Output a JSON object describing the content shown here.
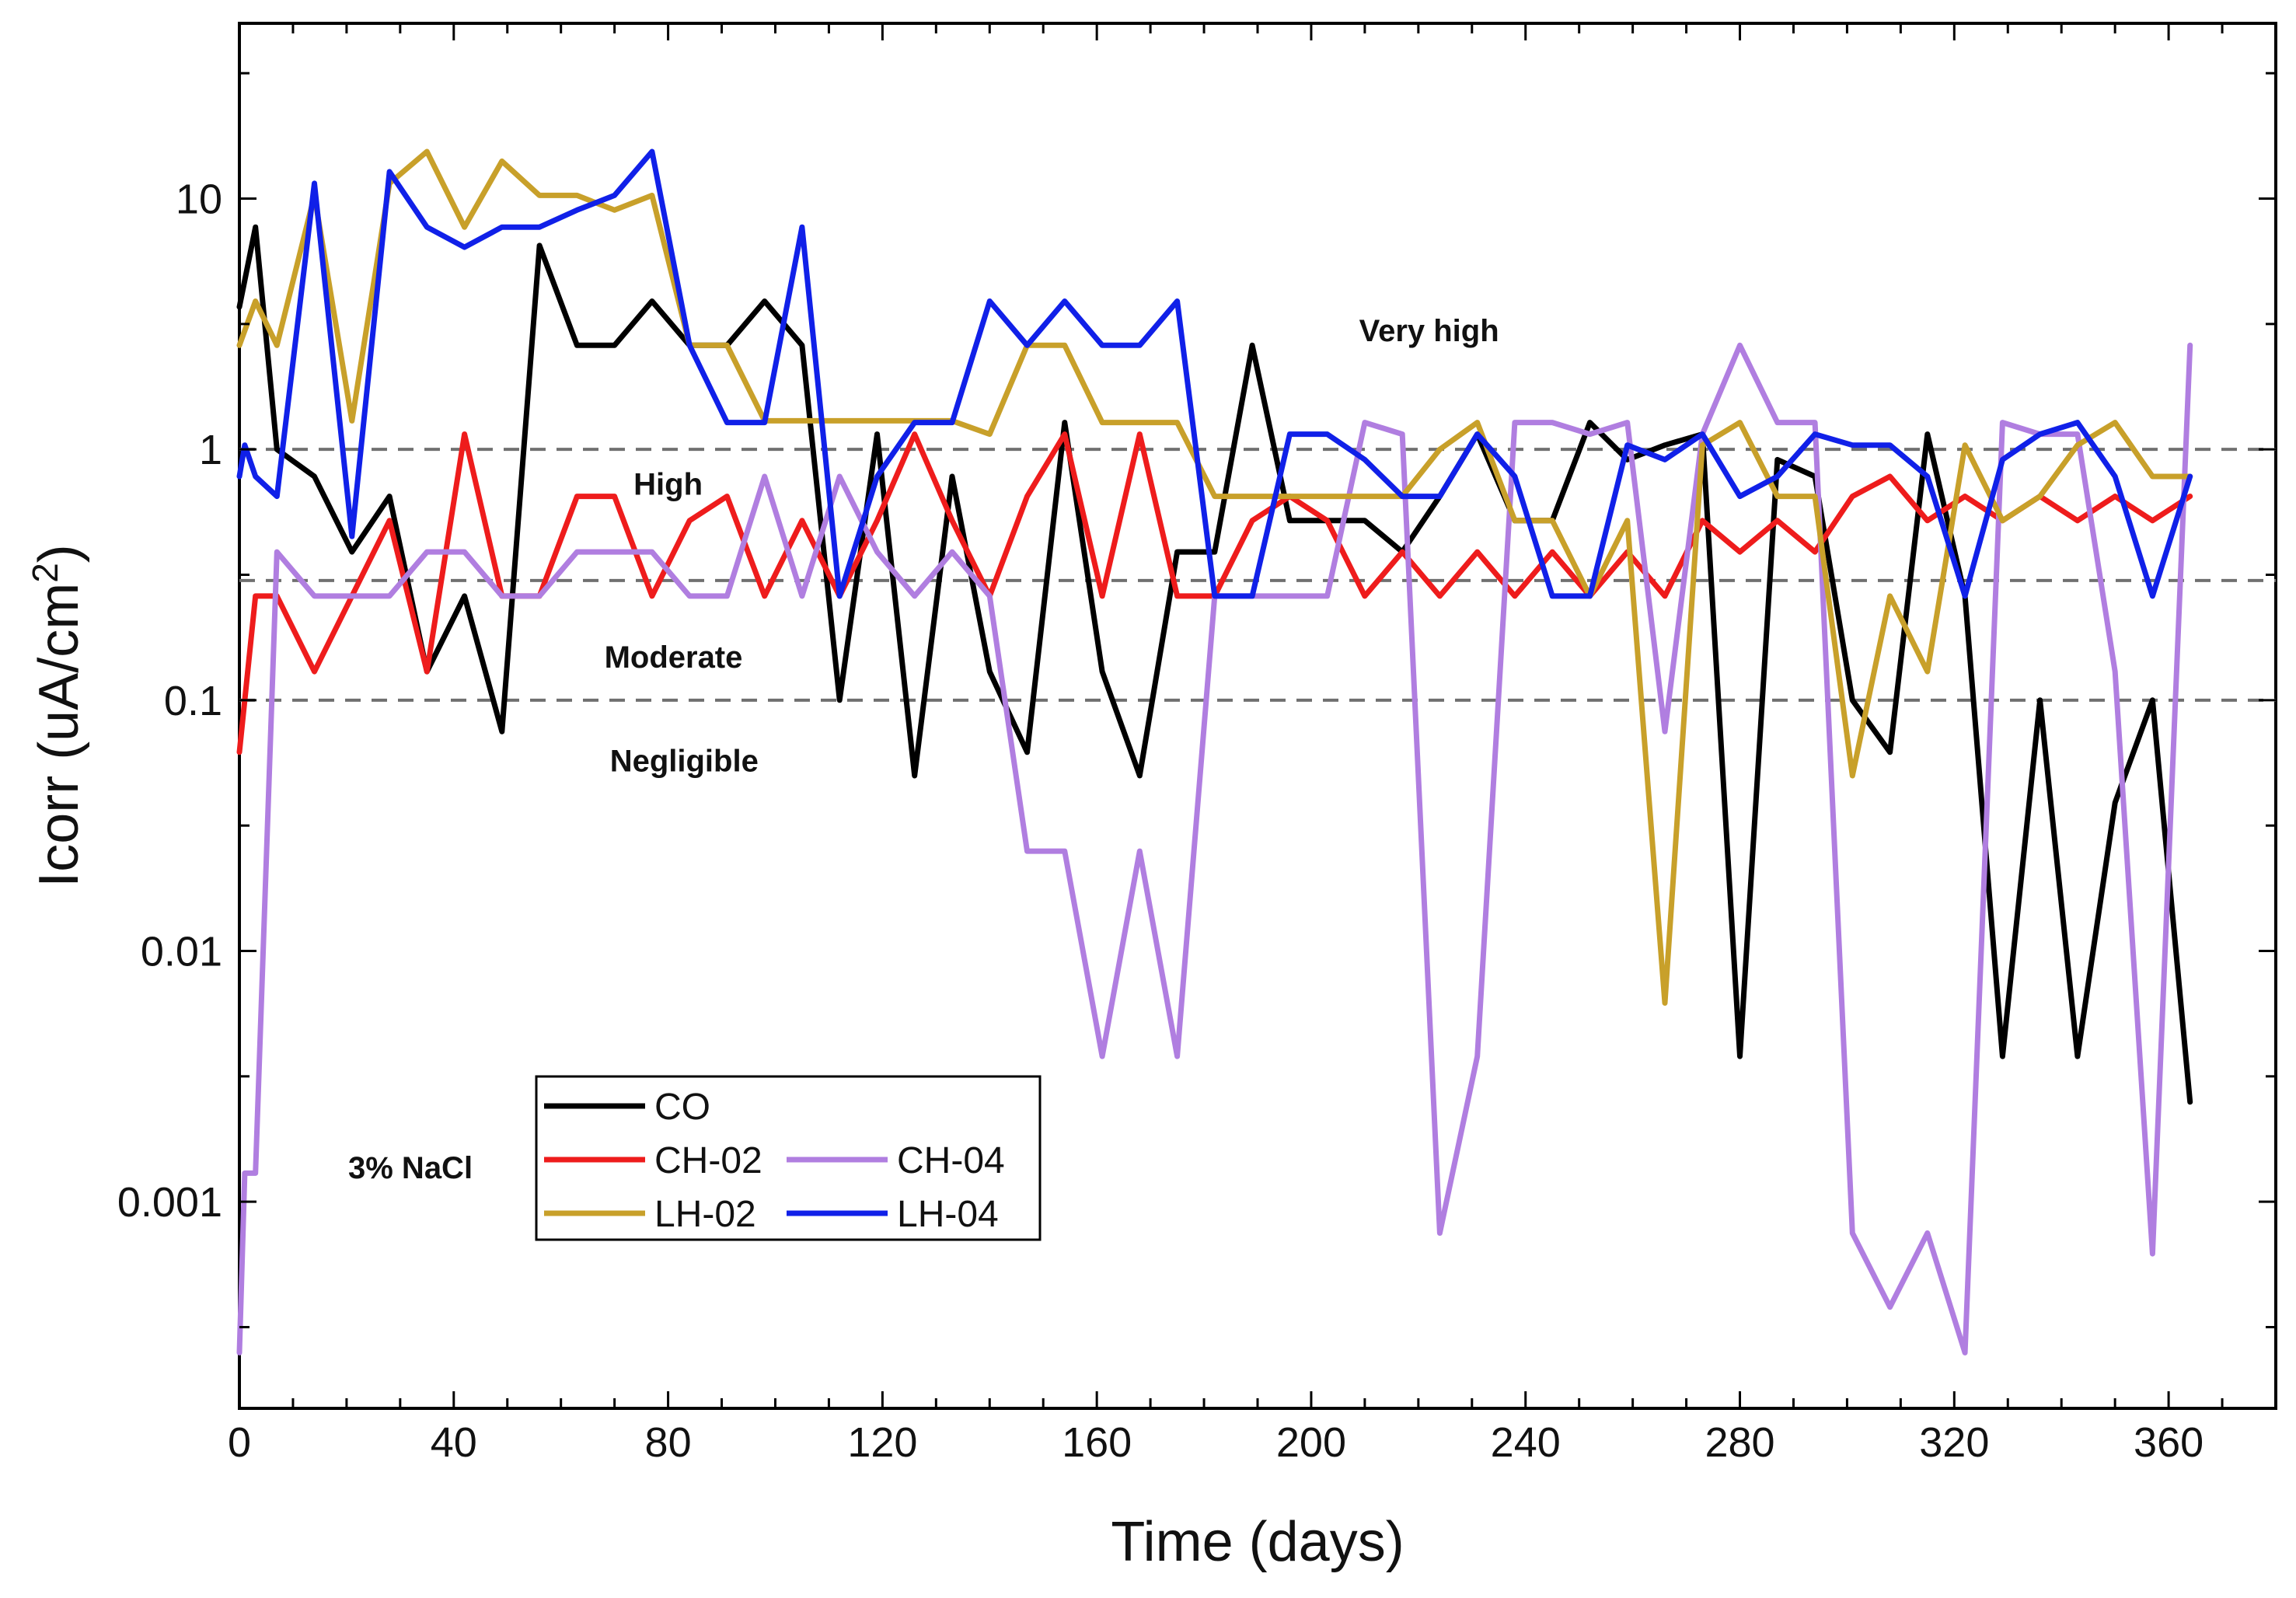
{
  "chart_data": {
    "type": "line",
    "xlabel": "Time (days)",
    "ylabel_main": "Icorr (uA/cm",
    "ylabel_sup": "2",
    "ylabel_end": ")",
    "xlim": [
      0,
      380
    ],
    "ylim": [
      0.00015,
      50
    ],
    "y_scale": "log",
    "grid": false,
    "x_ticks": [
      0,
      40,
      80,
      120,
      160,
      200,
      240,
      280,
      320,
      360
    ],
    "x_tick_labels": [
      "0",
      "40",
      "80",
      "120",
      "160",
      "200",
      "240",
      "280",
      "320",
      "360"
    ],
    "y_ticks": [
      0.001,
      0.01,
      0.1,
      1,
      10
    ],
    "y_tick_labels": [
      "0.001",
      "0.01",
      "0.1",
      "1",
      "10"
    ],
    "thresholds": [
      1,
      0.3,
      0.1
    ],
    "zones": [
      {
        "label": "Very high",
        "x": 222,
        "y": 2.7
      },
      {
        "label": "High",
        "x": 80,
        "y": 0.66
      },
      {
        "label": "Moderate",
        "x": 81,
        "y": 0.135
      },
      {
        "label": "Negligible",
        "x": 83,
        "y": 0.052
      }
    ],
    "annotation": "3%  NaCl",
    "legend_position": "bottom-left",
    "series": [
      {
        "name": "CO",
        "color": "#000000",
        "x": [
          0,
          3,
          7,
          14,
          21,
          28,
          35,
          42,
          49,
          56,
          63,
          70,
          77,
          84,
          91,
          98,
          105,
          112,
          119,
          126,
          133,
          140,
          147,
          154,
          161,
          168,
          175,
          182,
          189,
          196,
          203,
          210,
          217,
          224,
          231,
          238,
          245,
          252,
          259,
          266,
          273,
          280,
          287,
          294,
          301,
          308,
          315,
          322,
          329,
          336,
          343,
          350,
          357,
          364
        ],
        "y": [
          3.7,
          7.7,
          1.0,
          0.78,
          0.39,
          0.65,
          0.13,
          0.26,
          0.075,
          6.5,
          2.6,
          2.6,
          3.9,
          2.6,
          2.6,
          3.9,
          2.6,
          0.1,
          1.15,
          0.05,
          0.78,
          0.13,
          0.062,
          1.28,
          0.13,
          0.05,
          0.39,
          0.39,
          2.6,
          0.52,
          0.52,
          0.52,
          0.39,
          0.65,
          1.15,
          0.52,
          0.52,
          1.28,
          0.91,
          1.04,
          1.15,
          0.0038,
          0.91,
          0.78,
          0.1,
          0.062,
          1.15,
          0.26,
          0.0038,
          0.1,
          0.0038,
          0.039,
          0.1,
          0.0025
        ]
      },
      {
        "name": "CH-02",
        "color": "#ee1c1c",
        "x": [
          0,
          3,
          7,
          14,
          21,
          28,
          35,
          42,
          49,
          56,
          63,
          70,
          77,
          84,
          91,
          98,
          105,
          112,
          119,
          126,
          133,
          140,
          147,
          154,
          161,
          168,
          175,
          182,
          189,
          196,
          203,
          210,
          217,
          224,
          231,
          238,
          245,
          252,
          259,
          266,
          273,
          280,
          287,
          294,
          301,
          308,
          315,
          322,
          329,
          336,
          343,
          350,
          357,
          364
        ],
        "y": [
          0.062,
          0.26,
          0.26,
          0.13,
          0.26,
          0.52,
          0.13,
          1.15,
          0.26,
          0.26,
          0.65,
          0.65,
          0.26,
          0.52,
          0.65,
          0.26,
          0.52,
          0.26,
          0.52,
          1.15,
          0.52,
          0.26,
          0.65,
          1.15,
          0.26,
          1.15,
          0.26,
          0.26,
          0.52,
          0.65,
          0.52,
          0.26,
          0.39,
          0.26,
          0.39,
          0.26,
          0.39,
          0.26,
          0.39,
          0.26,
          0.52,
          0.39,
          0.52,
          0.39,
          0.65,
          0.78,
          0.52,
          0.65,
          0.52,
          0.65,
          0.52,
          0.65,
          0.52,
          0.65
        ]
      },
      {
        "name": "CH-04",
        "color": "#b07ee0",
        "x": [
          0,
          1,
          2,
          3,
          7,
          14,
          21,
          28,
          35,
          42,
          49,
          56,
          63,
          70,
          77,
          84,
          91,
          98,
          105,
          112,
          119,
          126,
          133,
          140,
          147,
          154,
          161,
          168,
          175,
          182,
          189,
          196,
          203,
          210,
          217,
          224,
          231,
          238,
          245,
          252,
          259,
          266,
          273,
          280,
          287,
          294,
          301,
          308,
          315,
          322,
          329,
          336,
          343,
          350,
          357,
          364
        ],
        "y": [
          0.00025,
          0.0013,
          0.0013,
          0.0013,
          0.39,
          0.26,
          0.26,
          0.26,
          0.39,
          0.39,
          0.26,
          0.26,
          0.39,
          0.39,
          0.39,
          0.26,
          0.26,
          0.78,
          0.26,
          0.78,
          0.39,
          0.26,
          0.39,
          0.26,
          0.025,
          0.025,
          0.0038,
          0.025,
          0.0038,
          0.26,
          0.26,
          0.26,
          0.26,
          1.28,
          1.15,
          0.00075,
          0.0038,
          1.28,
          1.28,
          1.15,
          1.28,
          0.075,
          1.15,
          2.6,
          1.28,
          1.28,
          0.00075,
          0.00038,
          0.00075,
          0.00025,
          1.28,
          1.15,
          1.15,
          0.13,
          0.00062,
          2.6
        ]
      },
      {
        "name": "LH-02",
        "color": "#c8a02a",
        "x": [
          0,
          3,
          7,
          14,
          21,
          28,
          35,
          42,
          49,
          56,
          63,
          70,
          77,
          84,
          91,
          98,
          105,
          112,
          119,
          126,
          133,
          140,
          147,
          154,
          161,
          168,
          175,
          182,
          189,
          196,
          203,
          210,
          217,
          224,
          231,
          238,
          245,
          252,
          259,
          266,
          273,
          280,
          287,
          294,
          301,
          308,
          315,
          322,
          329,
          336,
          343,
          350,
          357,
          364
        ],
        "y": [
          2.6,
          3.9,
          2.6,
          10.3,
          1.3,
          11.5,
          15.4,
          7.7,
          14.1,
          10.3,
          10.3,
          9.0,
          10.3,
          2.6,
          2.6,
          1.3,
          1.3,
          1.3,
          1.3,
          1.3,
          1.3,
          1.15,
          2.6,
          2.6,
          1.28,
          1.28,
          1.28,
          0.65,
          0.65,
          0.65,
          0.65,
          0.65,
          0.65,
          1.0,
          1.28,
          0.52,
          0.52,
          0.26,
          0.52,
          0.0062,
          1.04,
          1.28,
          0.65,
          0.65,
          0.05,
          0.26,
          0.13,
          1.04,
          0.52,
          0.65,
          1.04,
          1.28,
          0.78,
          0.78
        ]
      },
      {
        "name": "LH-04",
        "color": "#1020e8",
        "x": [
          0,
          1,
          3,
          7,
          14,
          21,
          28,
          35,
          42,
          49,
          56,
          63,
          70,
          77,
          84,
          91,
          98,
          105,
          112,
          119,
          126,
          133,
          140,
          147,
          154,
          161,
          168,
          175,
          182,
          189,
          196,
          203,
          210,
          217,
          224,
          231,
          238,
          245,
          252,
          259,
          266,
          273,
          280,
          287,
          294,
          301,
          308,
          315,
          322,
          329,
          336,
          343,
          350,
          357,
          364
        ],
        "y": [
          0.78,
          1.04,
          0.78,
          0.65,
          11.5,
          0.45,
          12.8,
          7.7,
          6.4,
          7.7,
          7.7,
          9.0,
          10.3,
          15.4,
          2.6,
          1.28,
          1.28,
          7.7,
          0.26,
          0.78,
          1.28,
          1.28,
          3.9,
          2.6,
          3.9,
          2.6,
          2.6,
          3.9,
          0.26,
          0.26,
          1.15,
          1.15,
          0.91,
          0.65,
          0.65,
          1.15,
          0.78,
          0.26,
          0.26,
          1.04,
          0.91,
          1.15,
          0.65,
          0.78,
          1.15,
          1.04,
          1.04,
          0.78,
          0.26,
          0.91,
          1.15,
          1.28,
          0.78,
          0.26,
          0.78
        ]
      }
    ]
  }
}
